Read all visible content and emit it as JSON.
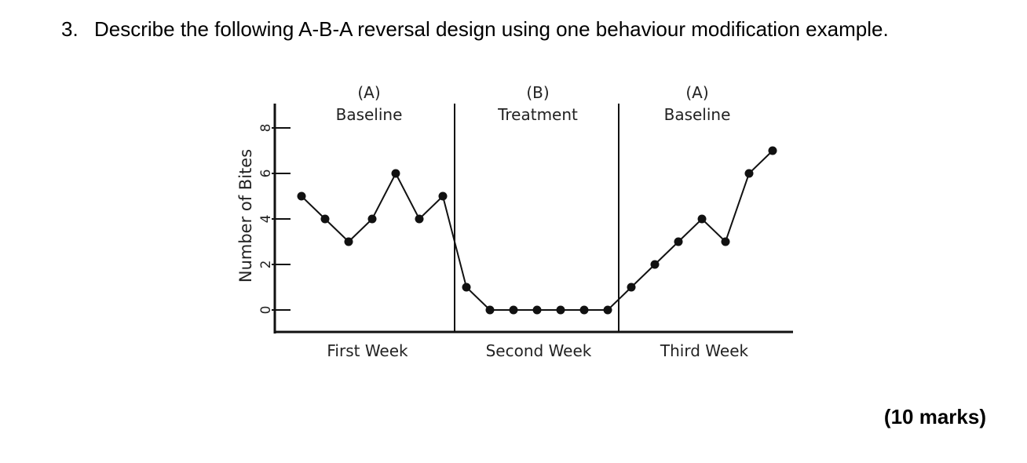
{
  "question": {
    "number": "3.",
    "text": "Describe the following A-B-A reversal design using one behaviour modification example."
  },
  "marks": "(10 marks)",
  "chart_data": {
    "type": "line",
    "ylabel": "Number of Bites",
    "ylim": [
      0,
      8
    ],
    "yticks": [
      0,
      2,
      4,
      6,
      8
    ],
    "phases": [
      {
        "letter": "(A)",
        "name": "Baseline",
        "week": "First Week"
      },
      {
        "letter": "(B)",
        "name": "Treatment",
        "week": "Second Week"
      },
      {
        "letter": "(A)",
        "name": "Baseline",
        "week": "Third Week"
      }
    ],
    "series": [
      {
        "values": [
          5,
          4,
          3,
          4,
          6,
          4,
          5,
          1,
          0,
          0,
          0,
          0,
          0,
          0,
          1,
          2,
          3,
          4,
          3,
          6,
          7
        ]
      }
    ],
    "colors": {
      "line": "#111111",
      "marker": "#111111",
      "axis": "#111111"
    }
  }
}
